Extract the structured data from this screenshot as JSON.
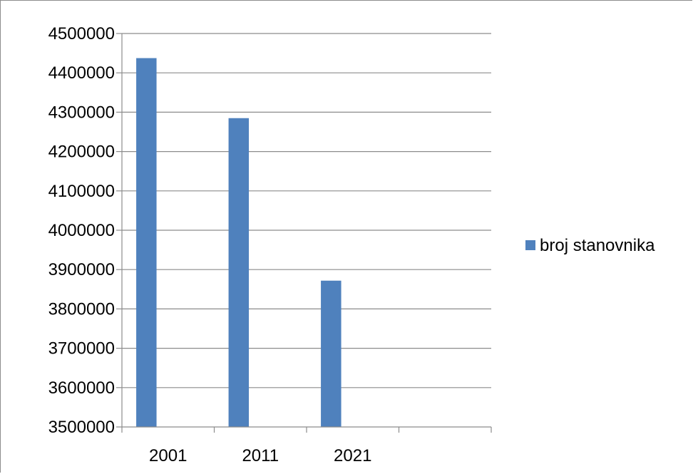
{
  "chart_data": {
    "type": "bar",
    "categories": [
      "2001",
      "2011",
      "2021",
      ""
    ],
    "series": [
      {
        "name": "broj stanovnika",
        "values": [
          4437460,
          4284889,
          3871833,
          null
        ],
        "color": "#4f81bd"
      }
    ],
    "ylim": [
      3500000,
      4500000
    ],
    "yticks": [
      "3500000",
      "3600000",
      "3700000",
      "3800000",
      "3900000",
      "4000000",
      "4100000",
      "4200000",
      "4300000",
      "4400000",
      "4500000"
    ],
    "grid": true,
    "legend_position": "right"
  }
}
